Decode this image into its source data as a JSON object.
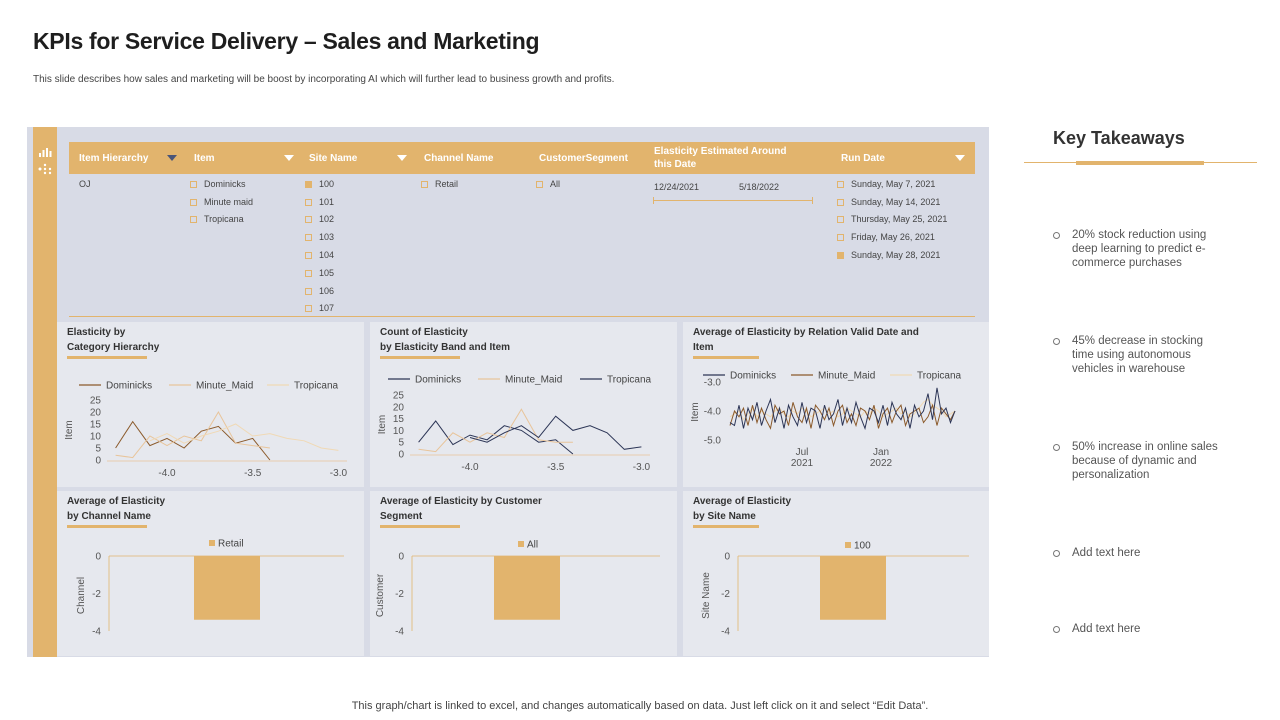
{
  "header": {
    "title": "KPIs for Service Delivery – Sales and Marketing",
    "subtitle": "This slide describes how sales and marketing will be boost by incorporating AI which will further lead to business growth and profits."
  },
  "footer": {
    "note": "This graph/chart is linked to excel, and changes automatically based on data. Just left click on it and select “Edit Data”."
  },
  "sidebar": {
    "icons": [
      "bar-chart-icon",
      "hierarchy-icon"
    ]
  },
  "filters": {
    "headers": [
      "Item Hierarchy",
      "Item",
      "Site Name",
      "Channel Name",
      "CustomerSegment",
      "Elasticity Estimated Around this Date",
      "Run Date"
    ],
    "item_hierarchy": [
      "OJ"
    ],
    "items": [
      "Dominicks",
      "Minute maid",
      "Tropicana"
    ],
    "site_names": [
      "100",
      "101",
      "102",
      "103",
      "104",
      "105",
      "106",
      "107"
    ],
    "channel_names": [
      "Retail"
    ],
    "customer_segments": [
      "All"
    ],
    "date_start": "12/24/2021",
    "date_end": "5/18/2022",
    "run_dates": [
      "Sunday, May 7, 2021",
      "Sunday, May 14, 2021",
      "Thursday, May 25, 2021",
      "Friday, May 26, 2021",
      "Sunday, May 28, 2021"
    ]
  },
  "colors": {
    "accent": "#e2b46d",
    "dominicks": "#8b5a2b",
    "minute_maid": "#e8c49a",
    "tropicana": "#f0d9b5",
    "navy": "#2c3556"
  },
  "panels": {
    "p1": {
      "title_line1": "Elasticity by",
      "title_line2": "Category Hierarchy"
    },
    "p2": {
      "title_line1": "Count  of Elasticity",
      "title_line2": "by Elasticity Band and Item"
    },
    "p3": {
      "title_line1": "Average of Elasticity by Relation Valid Date and",
      "title_line2": "Item"
    },
    "p4": {
      "title_line1": "Average of Elasticity",
      "title_line2": "by Channel Name"
    },
    "p5": {
      "title_line1": "Average of Elasticity by Customer",
      "title_line2": "Segment"
    },
    "p6": {
      "title_line1": "Average of Elasticity",
      "title_line2": "by Site Name"
    }
  },
  "chart_data": [
    {
      "type": "line",
      "title": "Elasticity by Category Hierarchy",
      "ylabel": "Item",
      "x_ticks": [
        "-4.0",
        "-3.5",
        "-3.0"
      ],
      "y_ticks": [
        "25",
        "20",
        "15",
        "10",
        "5",
        "0"
      ],
      "x": [
        -4.3,
        -4.2,
        -4.1,
        -4.0,
        -3.9,
        -3.8,
        -3.7,
        -3.6,
        -3.5,
        -3.4,
        -3.3,
        -3.2,
        -3.1,
        -3.0
      ],
      "xlim": [
        -4.35,
        -2.95
      ],
      "ylim": [
        0,
        25
      ],
      "series": [
        {
          "name": "Dominicks",
          "values": [
            5,
            16,
            6,
            9,
            5,
            12,
            14,
            7,
            9,
            0,
            null,
            null,
            null,
            null
          ]
        },
        {
          "name": "Minute_Maid",
          "values": [
            2,
            1,
            10,
            6,
            10,
            8,
            20,
            7,
            6,
            5,
            null,
            null,
            null,
            null
          ]
        },
        {
          "name": "Tropicana",
          "values": [
            null,
            null,
            8,
            11,
            7,
            10,
            12,
            15,
            10,
            11,
            9,
            8,
            5,
            4
          ]
        }
      ]
    },
    {
      "type": "line",
      "title": "Count of Elasticity by Elasticity Band and Item",
      "ylabel": "Item",
      "x_ticks": [
        "-4.0",
        "-3.5",
        "-3.0"
      ],
      "y_ticks": [
        "25",
        "20",
        "15",
        "10",
        "5",
        "0"
      ],
      "x": [
        -4.3,
        -4.2,
        -4.1,
        -4.0,
        -3.9,
        -3.8,
        -3.7,
        -3.6,
        -3.5,
        -3.4,
        -3.3,
        -3.2,
        -3.1,
        -3.0
      ],
      "xlim": [
        -4.35,
        -2.95
      ],
      "ylim": [
        0,
        25
      ],
      "series": [
        {
          "name": "Dominicks",
          "values": [
            5,
            14,
            4,
            8,
            6,
            12,
            10,
            5,
            6,
            0,
            null,
            null,
            null,
            null
          ]
        },
        {
          "name": "Minute_Maid",
          "values": [
            2,
            1,
            9,
            5,
            9,
            7,
            19,
            6,
            5,
            5,
            null,
            null,
            null,
            null
          ]
        },
        {
          "name": "Tropicana",
          "values": [
            null,
            null,
            null,
            7,
            5,
            9,
            12,
            7,
            16,
            10,
            12,
            9,
            2,
            3
          ]
        }
      ]
    },
    {
      "type": "line",
      "title": "Average of Elasticity by Relation Valid Date and Item",
      "ylabel": "Item",
      "y_ticks": [
        "-3.0",
        "-4.0",
        "-5.0"
      ],
      "x_ticks": [
        "Jul 2021",
        "Jan 2022"
      ],
      "ylim": [
        -5.0,
        -3.0
      ],
      "series": [
        {
          "name": "Dominicks",
          "values": [
            -4.4,
            -4.5,
            -3.8,
            -4.6,
            -3.9,
            -4.3,
            -3.7,
            -4.5,
            -4.0,
            -3.6,
            -4.4,
            -3.9,
            -4.6,
            -3.8,
            -4.2,
            -4.5,
            -3.7,
            -4.4,
            -3.9,
            -4.0,
            -4.6,
            -3.8,
            -4.3,
            -4.1,
            -3.6,
            -4.5,
            -3.9,
            -4.4,
            -3.7,
            -4.2,
            -4.6,
            -3.9,
            -4.0,
            -4.4,
            -3.8,
            -4.5,
            -3.7,
            -4.1,
            -4.3,
            -3.9,
            -4.6,
            -3.8,
            -4.2,
            -4.0,
            -3.4,
            -4.3,
            -3.2,
            -4.1,
            -3.9,
            -4.4,
            -4.0
          ]
        },
        {
          "name": "Minute_Maid",
          "values": [
            -4.5,
            -4.0,
            -4.2,
            -3.9,
            -4.5,
            -3.8,
            -4.4,
            -3.9,
            -4.3,
            -4.6,
            -3.8,
            -4.1,
            -4.0,
            -4.5,
            -3.7,
            -4.2,
            -4.4,
            -3.9,
            -4.6,
            -3.8,
            -4.0,
            -4.3,
            -3.9,
            -4.5,
            -4.0,
            -3.8,
            -4.4,
            -4.1,
            -4.5,
            -3.9,
            -4.0,
            -4.3,
            -3.8,
            -4.6,
            -4.1,
            -3.9,
            -4.4,
            -4.0,
            -3.8,
            -4.5,
            -4.1,
            -4.0,
            -3.9,
            -4.4,
            -4.2,
            -3.8,
            -4.5,
            -3.9,
            -4.1,
            -4.3,
            -4.0
          ]
        },
        {
          "name": "Tropicana",
          "values": [
            -4.2,
            -4.1,
            -4.0,
            -4.3,
            -4.1,
            -3.9,
            -4.2,
            -4.0,
            -4.1,
            -4.2,
            -4.0,
            -3.9,
            -4.1,
            -4.2,
            -4.0,
            -4.1,
            -3.9,
            -4.0,
            -4.2,
            -4.1,
            -4.0,
            -3.9,
            -4.1,
            -4.0,
            -4.2,
            -4.1,
            -3.9,
            -4.0,
            -4.1,
            -4.2,
            -4.0,
            -4.1,
            -3.9,
            -4.0,
            -4.2,
            -4.1,
            -4.0,
            -3.9,
            -4.1,
            -4.0,
            -4.2,
            -4.1,
            -3.9,
            -3.7,
            -3.6,
            -3.8,
            -3.9,
            -4.0,
            -4.2,
            -4.1,
            -4.0
          ]
        }
      ]
    },
    {
      "type": "bar",
      "title": "Average of Elasticity by Channel Name",
      "ylabel": "Channel",
      "categories": [
        "Retail"
      ],
      "values": [
        -3.4
      ],
      "ylim": [
        -4,
        0
      ],
      "y_ticks": [
        "0",
        "-2",
        "-4"
      ]
    },
    {
      "type": "bar",
      "title": "Average of Elasticity by Customer Segment",
      "ylabel": "Customer",
      "categories": [
        "All"
      ],
      "values": [
        -3.4
      ],
      "ylim": [
        -4,
        0
      ],
      "y_ticks": [
        "0",
        "-2",
        "-4"
      ]
    },
    {
      "type": "bar",
      "title": "Average of Elasticity by Site Name",
      "ylabel": "Site Name",
      "categories": [
        "100"
      ],
      "values": [
        -3.4
      ],
      "ylim": [
        -4,
        0
      ],
      "y_ticks": [
        "0",
        "-2",
        "-4"
      ]
    }
  ],
  "takeaways": {
    "title": "Key Takeaways",
    "items": [
      "20% stock reduction using deep learning to predict e-commerce purchases",
      "45% decrease in stocking time using autonomous vehicles in warehouse",
      "50% increase in online sales because of dynamic and personalization",
      "Add text here",
      "Add text here"
    ]
  }
}
